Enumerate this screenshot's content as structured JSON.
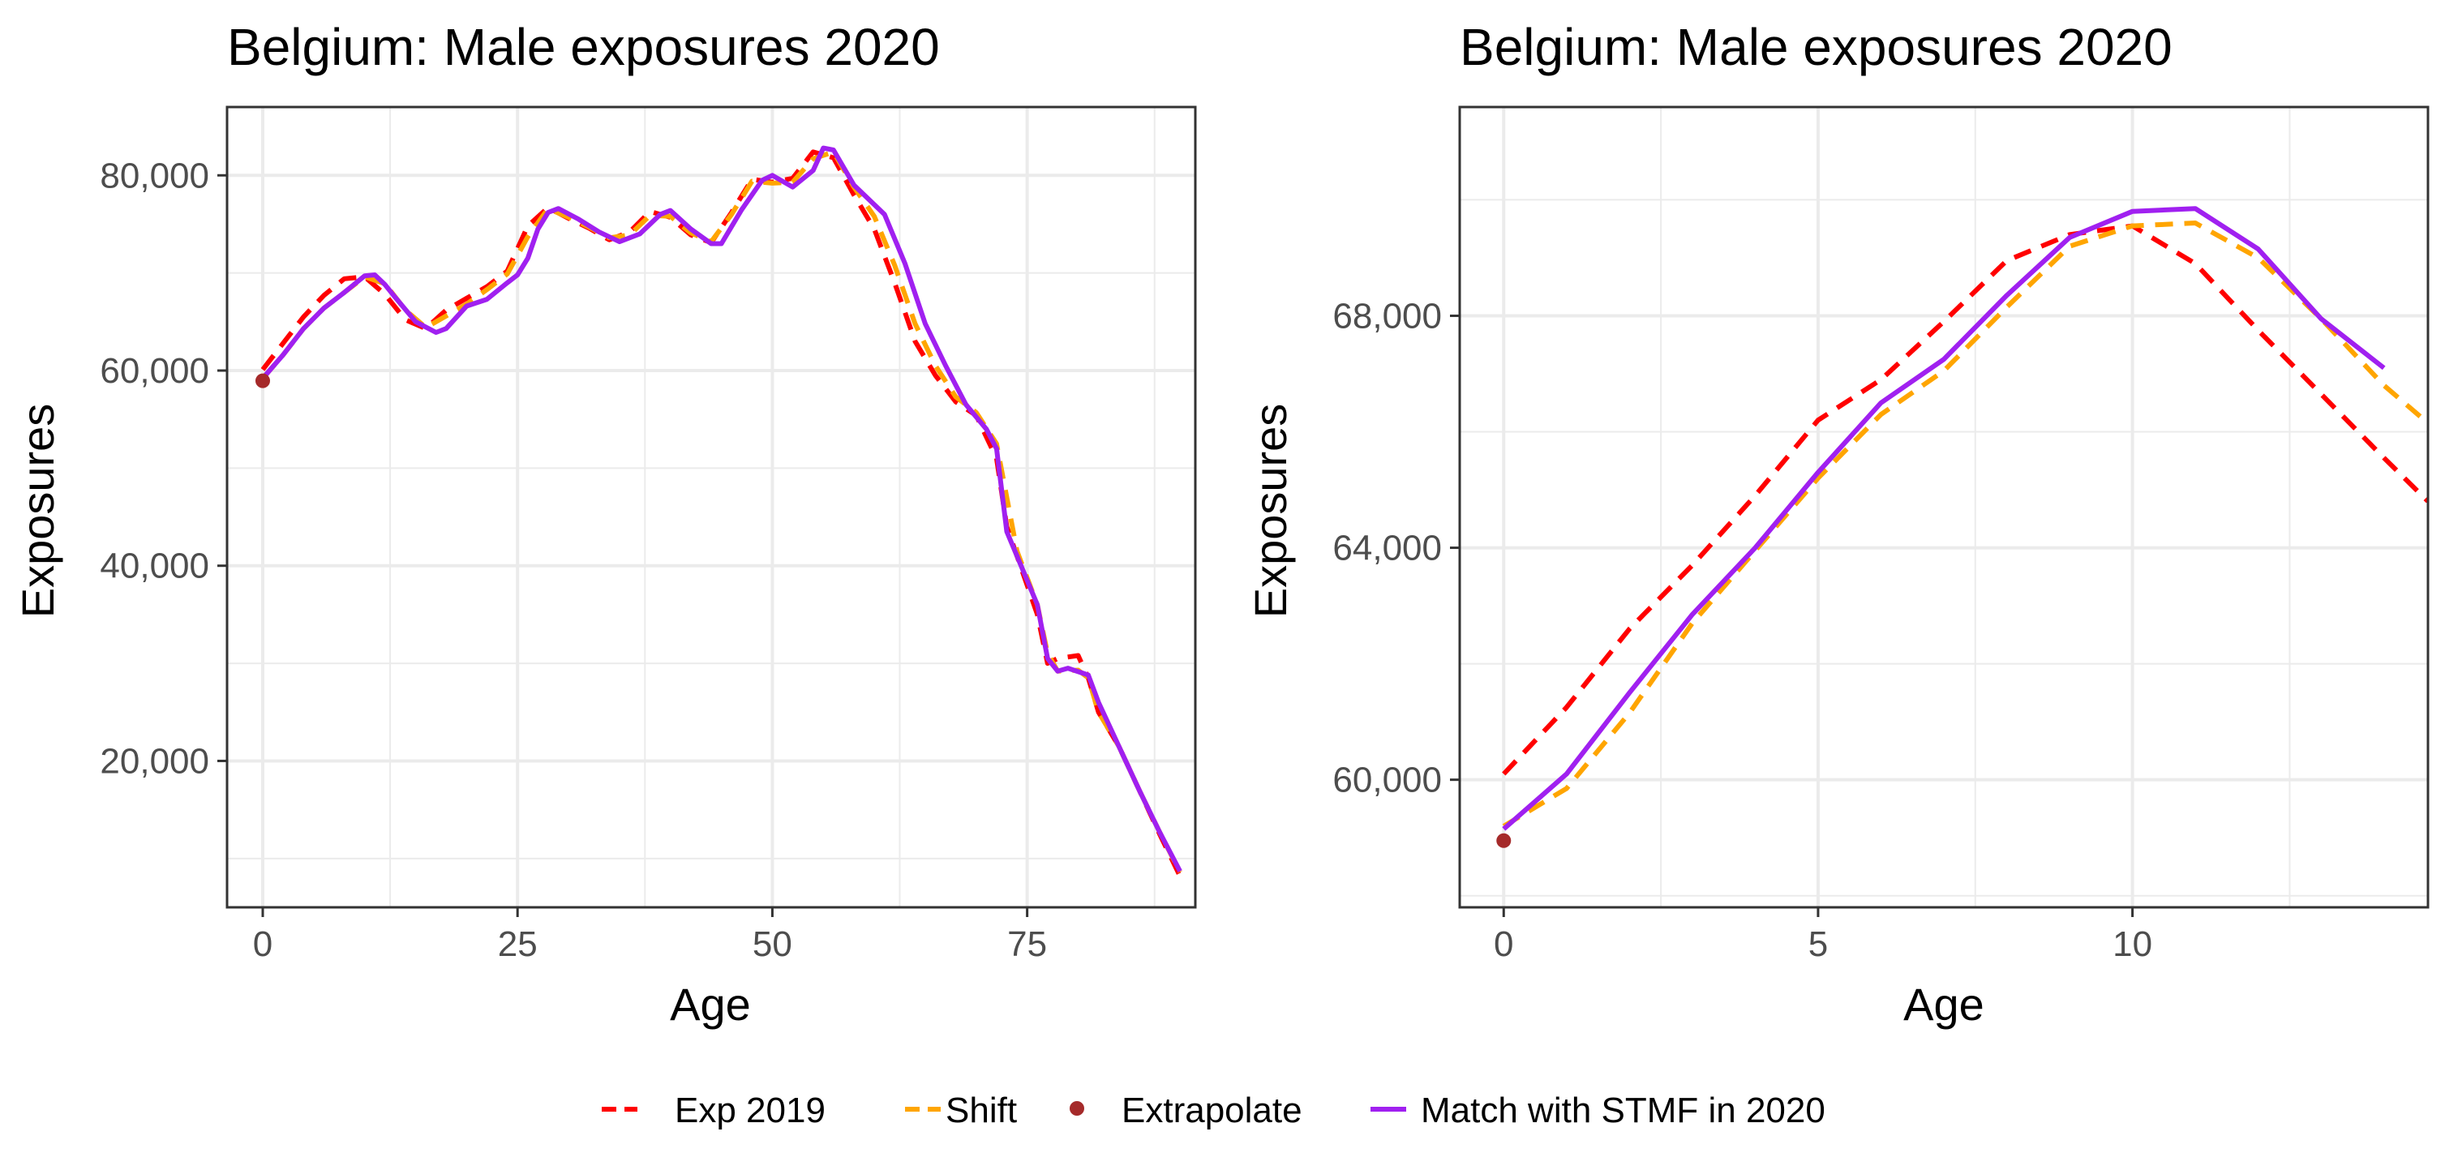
{
  "chart_data": [
    {
      "type": "line",
      "title": "Belgium: Male exposures 2020",
      "xlabel": "Age",
      "ylabel": "Exposures",
      "xlim": [
        -3.5,
        91.5
      ],
      "ylim": [
        5000,
        87000
      ],
      "grid": true,
      "x_ticks": [
        0,
        25,
        50,
        75
      ],
      "x_tick_labels": [
        "0",
        "25",
        "50",
        "75"
      ],
      "y_ticks": [
        20000,
        40000,
        60000,
        80000
      ],
      "y_tick_labels": [
        "20,000",
        "40,000",
        "60,000",
        "80,000"
      ],
      "series": [
        {
          "name": "Exp 2019",
          "color": "#ff0000",
          "style": "dashed",
          "points": [
            [
              0,
              60100
            ],
            [
              2,
              62800
            ],
            [
              4,
              65500
            ],
            [
              6,
              67700
            ],
            [
              8,
              69400
            ],
            [
              10,
              69600
            ],
            [
              12,
              67800
            ],
            [
              14,
              65200
            ],
            [
              16,
              64300
            ],
            [
              18,
              66200
            ],
            [
              20,
              67400
            ],
            [
              22,
              68600
            ],
            [
              24,
              70200
            ],
            [
              26,
              74800
            ],
            [
              28,
              76700
            ],
            [
              30,
              75600
            ],
            [
              32,
              74600
            ],
            [
              34,
              73400
            ],
            [
              36,
              74200
            ],
            [
              38,
              76300
            ],
            [
              40,
              75700
            ],
            [
              42,
              73900
            ],
            [
              44,
              73100
            ],
            [
              46,
              76200
            ],
            [
              48,
              79600
            ],
            [
              50,
              79300
            ],
            [
              52,
              79700
            ],
            [
              54,
              82400
            ],
            [
              56,
              81800
            ],
            [
              58,
              78000
            ],
            [
              60,
              74500
            ],
            [
              62,
              69000
            ],
            [
              64,
              63000
            ],
            [
              66,
              59500
            ],
            [
              68,
              56800
            ],
            [
              70,
              55400
            ],
            [
              72,
              51000
            ],
            [
              73,
              44000
            ],
            [
              74,
              41000
            ],
            [
              76,
              35000
            ],
            [
              77,
              30000
            ],
            [
              78,
              30500
            ],
            [
              80,
              30800
            ],
            [
              81,
              28500
            ],
            [
              82,
              25000
            ],
            [
              84,
              21500
            ],
            [
              86,
              17000
            ],
            [
              88,
              12500
            ],
            [
              90,
              8200
            ]
          ]
        },
        {
          "name": "Shift",
          "color": "#ffa500",
          "style": "dashed",
          "points": [
            [
              0,
              59200
            ],
            [
              2,
              61600
            ],
            [
              4,
              64300
            ],
            [
              6,
              66400
            ],
            [
              8,
              68000
            ],
            [
              10,
              69600
            ],
            [
              12,
              68900
            ],
            [
              14,
              66200
            ],
            [
              16,
              64400
            ],
            [
              18,
              65600
            ],
            [
              20,
              66800
            ],
            [
              22,
              68300
            ],
            [
              24,
              69900
            ],
            [
              26,
              73700
            ],
            [
              28,
              76600
            ],
            [
              30,
              75700
            ],
            [
              32,
              74700
            ],
            [
              34,
              73600
            ],
            [
              36,
              73900
            ],
            [
              38,
              75900
            ],
            [
              40,
              75800
            ],
            [
              42,
              74100
            ],
            [
              44,
              73200
            ],
            [
              46,
              76000
            ],
            [
              48,
              79400
            ],
            [
              50,
              79200
            ],
            [
              52,
              79300
            ],
            [
              54,
              81700
            ],
            [
              56,
              82400
            ],
            [
              58,
              78800
            ],
            [
              60,
              75800
            ],
            [
              62,
              70800
            ],
            [
              64,
              64800
            ],
            [
              66,
              60500
            ],
            [
              68,
              57300
            ],
            [
              70,
              55700
            ],
            [
              72,
              52500
            ],
            [
              73,
              47000
            ],
            [
              74,
              41500
            ],
            [
              76,
              36000
            ],
            [
              77,
              31000
            ],
            [
              78,
              29200
            ],
            [
              80,
              29300
            ],
            [
              81,
              28500
            ],
            [
              82,
              25000
            ],
            [
              84,
              21500
            ],
            [
              86,
              17000
            ],
            [
              88,
              12700
            ],
            [
              90,
              8600
            ]
          ]
        },
        {
          "name": "Extrapolate",
          "color": "#a52a2a",
          "style": "point",
          "points": [
            [
              0,
              58950
            ]
          ]
        },
        {
          "name": "Match with STMF in 2020",
          "color": "#a020f0",
          "style": "solid",
          "points": [
            [
              0,
              59200
            ],
            [
              2,
              61600
            ],
            [
              4,
              64300
            ],
            [
              6,
              66400
            ],
            [
              8,
              68000
            ],
            [
              10,
              69700
            ],
            [
              11,
              69800
            ],
            [
              12,
              68800
            ],
            [
              13,
              67500
            ],
            [
              15,
              65000
            ],
            [
              17,
              63900
            ],
            [
              18,
              64300
            ],
            [
              20,
              66600
            ],
            [
              22,
              67300
            ],
            [
              24,
              69000
            ],
            [
              25,
              69800
            ],
            [
              26,
              71500
            ],
            [
              27,
              74500
            ],
            [
              28,
              76200
            ],
            [
              29,
              76600
            ],
            [
              31,
              75500
            ],
            [
              33,
              74200
            ],
            [
              35,
              73200
            ],
            [
              37,
              74000
            ],
            [
              39,
              76000
            ],
            [
              40,
              76400
            ],
            [
              42,
              74500
            ],
            [
              44,
              73000
            ],
            [
              45,
              73000
            ],
            [
              47,
              76500
            ],
            [
              49,
              79500
            ],
            [
              50,
              80000
            ],
            [
              52,
              78800
            ],
            [
              54,
              80500
            ],
            [
              55,
              82800
            ],
            [
              56,
              82600
            ],
            [
              58,
              79000
            ],
            [
              61,
              76000
            ],
            [
              63,
              71000
            ],
            [
              65,
              64800
            ],
            [
              67,
              60500
            ],
            [
              69,
              56500
            ],
            [
              71,
              54000
            ],
            [
              72,
              52000
            ],
            [
              73,
              43500
            ],
            [
              74,
              41000
            ],
            [
              76,
              36000
            ],
            [
              77,
              30500
            ],
            [
              78,
              29200
            ],
            [
              79,
              29500
            ],
            [
              81,
              28800
            ],
            [
              82,
              26000
            ],
            [
              84,
              21500
            ],
            [
              86,
              17000
            ],
            [
              88,
              12700
            ],
            [
              90,
              8700
            ]
          ]
        }
      ]
    },
    {
      "type": "line",
      "title": "Belgium: Male exposures 2020",
      "xlabel": "Age",
      "ylabel": "Exposures",
      "xlim": [
        -0.7,
        14.7
      ],
      "ylim": [
        57800,
        71600
      ],
      "grid": true,
      "x_ticks": [
        0,
        5,
        10
      ],
      "x_tick_labels": [
        "0",
        "5",
        "10"
      ],
      "y_ticks": [
        60000,
        64000,
        68000
      ],
      "y_tick_labels": [
        "60,000",
        "64,000",
        "68,000"
      ],
      "series": [
        {
          "name": "Exp 2019",
          "color": "#ff0000",
          "style": "dashed",
          "points": [
            [
              0,
              60100
            ],
            [
              1,
              61250
            ],
            [
              2,
              62600
            ],
            [
              3,
              63700
            ],
            [
              4,
              64900
            ],
            [
              5,
              66200
            ],
            [
              6,
              66900
            ],
            [
              7,
              67900
            ],
            [
              8,
              68950
            ],
            [
              9,
              69400
            ],
            [
              10,
              69550
            ],
            [
              11,
              68900
            ],
            [
              12,
              67750
            ],
            [
              13,
              66650
            ],
            [
              14,
              65550
            ],
            [
              14.7,
              64800
            ]
          ]
        },
        {
          "name": "Shift",
          "color": "#ffa500",
          "style": "dashed",
          "points": [
            [
              0,
              59200
            ],
            [
              1,
              59850
            ],
            [
              2,
              61150
            ],
            [
              3,
              62700
            ],
            [
              4,
              63950
            ],
            [
              5,
              65200
            ],
            [
              6,
              66300
            ],
            [
              7,
              67050
            ],
            [
              8,
              68150
            ],
            [
              9,
              69200
            ],
            [
              10,
              69550
            ],
            [
              11,
              69600
            ],
            [
              12,
              69000
            ],
            [
              13,
              67950
            ],
            [
              14,
              66800
            ],
            [
              14.7,
              66150
            ]
          ]
        },
        {
          "name": "Extrapolate",
          "color": "#a52a2a",
          "style": "point",
          "points": [
            [
              0,
              58950
            ]
          ]
        },
        {
          "name": "Match with STMF in 2020",
          "color": "#a020f0",
          "style": "solid",
          "points": [
            [
              0,
              59150
            ],
            [
              1,
              60100
            ],
            [
              2,
              61500
            ],
            [
              3,
              62850
            ],
            [
              4,
              64000
            ],
            [
              5,
              65300
            ],
            [
              6,
              66500
            ],
            [
              7,
              67250
            ],
            [
              8,
              68350
            ],
            [
              9,
              69350
            ],
            [
              10,
              69800
            ],
            [
              11,
              69850
            ],
            [
              12,
              69150
            ],
            [
              13,
              67950
            ],
            [
              14,
              67100
            ]
          ]
        }
      ]
    }
  ],
  "legend": {
    "placement": "bottom",
    "items": [
      {
        "label": "Exp 2019",
        "color": "#ff0000",
        "style": "dashed"
      },
      {
        "label": "Shift",
        "color": "#ffa500",
        "style": "dashed"
      },
      {
        "label": "Extrapolate",
        "color": "#a52a2a",
        "style": "point"
      },
      {
        "label": "Match with STMF in 2020",
        "color": "#a020f0",
        "style": "solid"
      }
    ]
  }
}
